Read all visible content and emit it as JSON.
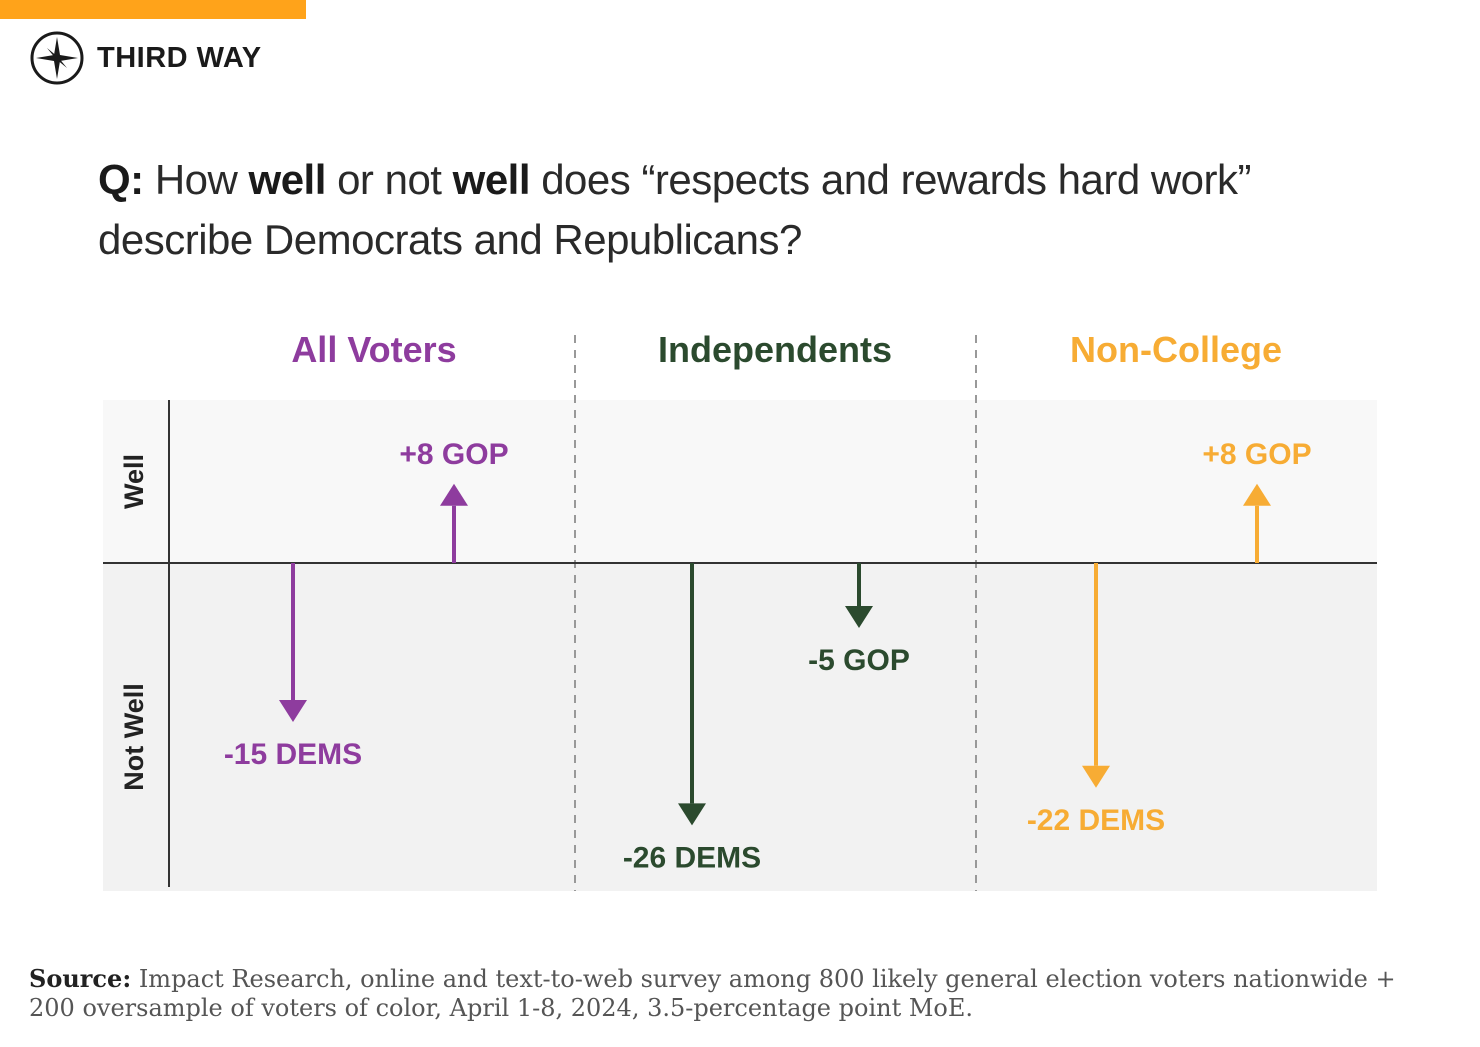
{
  "brand": {
    "name": "THIRD WAY",
    "accent_color": "#FFA31A",
    "icon": "compass-star-icon"
  },
  "question": {
    "prefix": "Q:",
    "part1": "How",
    "bold1": "well",
    "part2": "or not",
    "bold2": "well",
    "part3": "does “respects and rewards hard work” describe Democrats and Republicans?"
  },
  "chart_data": {
    "type": "bar",
    "orientation": "diverging-arrows",
    "y_labels": {
      "positive": "Well",
      "negative": "Not Well"
    },
    "panels": [
      {
        "title": "All Voters",
        "color": "#8E3C9E",
        "arrows": [
          {
            "party": "DEMS",
            "value": -15,
            "label": "-15 DEMS"
          },
          {
            "party": "GOP",
            "value": 8,
            "label": "+8 GOP"
          }
        ]
      },
      {
        "title": "Independents",
        "color": "#2B4A2E",
        "arrows": [
          {
            "party": "DEMS",
            "value": -26,
            "label": "-26 DEMS"
          },
          {
            "party": "GOP",
            "value": -5,
            "label": "-5 GOP"
          }
        ]
      },
      {
        "title": "Non-College",
        "color": "#F7AC34",
        "arrows": [
          {
            "party": "DEMS",
            "value": -22,
            "label": "-22 DEMS"
          },
          {
            "party": "GOP",
            "value": 8,
            "label": "+8 GOP"
          }
        ]
      }
    ]
  },
  "source": {
    "label": "Source:",
    "text": "Impact Research, online and text-to-web survey among 800 likely general election voters nationwide + 200 oversample of voters of color, April 1-8, 2024, 3.5-percentage point MoE."
  }
}
